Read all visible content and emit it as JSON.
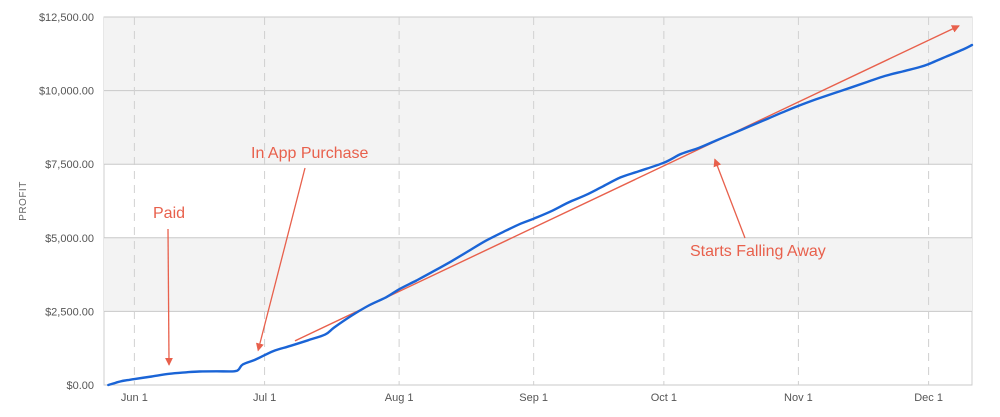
{
  "chart_data": {
    "type": "line",
    "ylabel": "PROFIT",
    "ylim": [
      0,
      12500
    ],
    "yticks": [
      {
        "value": 0,
        "label": "$0.00"
      },
      {
        "value": 2500,
        "label": "$2,500.00"
      },
      {
        "value": 5000,
        "label": "$5,000.00"
      },
      {
        "value": 7500,
        "label": "$7,500.00"
      },
      {
        "value": 10000,
        "label": "$10,000.00"
      },
      {
        "value": 12500,
        "label": "$12,500.00"
      }
    ],
    "xlim": [
      "2013-05-25",
      "2013-12-11"
    ],
    "xticks": [
      {
        "value": "2013-06-01",
        "label": "Jun 1"
      },
      {
        "value": "2013-07-01",
        "label": "Jul 1"
      },
      {
        "value": "2013-08-01",
        "label": "Aug 1"
      },
      {
        "value": "2013-09-01",
        "label": "Sep 1"
      },
      {
        "value": "2013-10-01",
        "label": "Oct 1"
      },
      {
        "value": "2013-11-01",
        "label": "Nov 1"
      },
      {
        "value": "2013-12-01",
        "label": "Dec 1"
      }
    ],
    "grid": true,
    "series": [
      {
        "color": "#1a64d6",
        "points": [
          [
            "2013-05-26",
            0
          ],
          [
            "2013-05-29",
            130
          ],
          [
            "2013-06-01",
            200
          ],
          [
            "2013-06-05",
            290
          ],
          [
            "2013-06-09",
            380
          ],
          [
            "2013-06-13",
            430
          ],
          [
            "2013-06-16",
            460
          ],
          [
            "2013-06-20",
            465
          ],
          [
            "2013-06-24",
            465
          ],
          [
            "2013-06-25",
            520
          ],
          [
            "2013-06-26",
            700
          ],
          [
            "2013-06-29",
            870
          ],
          [
            "2013-07-03",
            1150
          ],
          [
            "2013-07-07",
            1330
          ],
          [
            "2013-07-11",
            1520
          ],
          [
            "2013-07-15",
            1720
          ],
          [
            "2013-07-17",
            1950
          ],
          [
            "2013-07-21",
            2350
          ],
          [
            "2013-07-25",
            2700
          ],
          [
            "2013-07-29",
            2980
          ],
          [
            "2013-08-01",
            3250
          ],
          [
            "2013-08-05",
            3550
          ],
          [
            "2013-08-09",
            3870
          ],
          [
            "2013-08-13",
            4200
          ],
          [
            "2013-08-17",
            4550
          ],
          [
            "2013-08-21",
            4900
          ],
          [
            "2013-08-25",
            5200
          ],
          [
            "2013-08-29",
            5480
          ],
          [
            "2013-09-01",
            5650
          ],
          [
            "2013-09-05",
            5900
          ],
          [
            "2013-09-09",
            6200
          ],
          [
            "2013-09-13",
            6450
          ],
          [
            "2013-09-17",
            6750
          ],
          [
            "2013-09-21",
            7050
          ],
          [
            "2013-09-25",
            7250
          ],
          [
            "2013-10-01",
            7550
          ],
          [
            "2013-10-05",
            7850
          ],
          [
            "2013-10-09",
            8050
          ],
          [
            "2013-10-13",
            8300
          ],
          [
            "2013-10-17",
            8550
          ],
          [
            "2013-10-21",
            8800
          ],
          [
            "2013-10-25",
            9050
          ],
          [
            "2013-10-29",
            9300
          ],
          [
            "2013-11-01",
            9480
          ],
          [
            "2013-11-05",
            9700
          ],
          [
            "2013-11-09",
            9900
          ],
          [
            "2013-11-13",
            10100
          ],
          [
            "2013-11-17",
            10300
          ],
          [
            "2013-11-21",
            10500
          ],
          [
            "2013-11-25",
            10650
          ],
          [
            "2013-11-29",
            10800
          ],
          [
            "2013-12-01",
            10900
          ],
          [
            "2013-12-05",
            11150
          ],
          [
            "2013-12-09",
            11400
          ],
          [
            "2013-12-11",
            11550
          ]
        ]
      }
    ],
    "trendline": {
      "color": "#e8604c",
      "start": [
        "2013-07-08",
        1500
      ],
      "end": [
        "2013-12-08",
        12200
      ]
    },
    "annotations": [
      {
        "text": "Paid",
        "color": "#e8604c",
        "arrow_to": [
          "2013-06-09",
          380
        ]
      },
      {
        "text": "In App Purchase",
        "color": "#e8604c",
        "arrow_to": [
          "2013-06-29",
          880
        ]
      },
      {
        "text": "Starts Falling Away",
        "color": "#e8604c",
        "arrow_to": [
          "2013-10-12",
          7950
        ]
      }
    ]
  }
}
